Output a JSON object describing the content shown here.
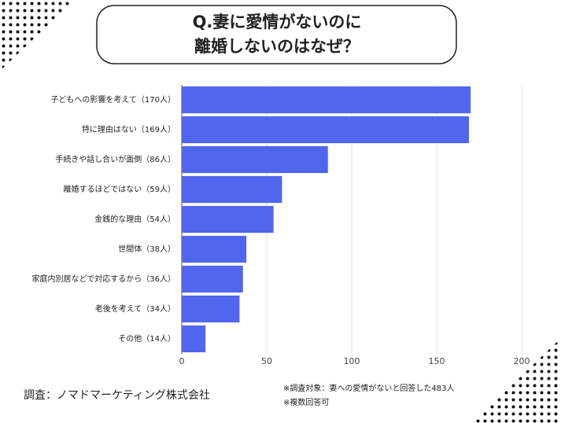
{
  "chart_data": {
    "type": "bar",
    "orientation": "horizontal",
    "title": [
      "Q.妻に愛情がないのに",
      "離婚しないのはなぜ？"
    ],
    "categories": [
      "子どもへの影響を考えて（170人）",
      "特に理由はない（169人）",
      "手続きや話し合いが面倒（86人）",
      "離婚するほどではない（59人）",
      "金銭的な理由（54人）",
      "世間体（38人）",
      "家庭内別居などで対応するから（36人）",
      "老後を考えて（34人）",
      "その他（14人）"
    ],
    "values": [
      170,
      169,
      86,
      59,
      54,
      38,
      36,
      34,
      14
    ],
    "color": "#5166ee",
    "xlim": [
      0,
      200
    ],
    "xticks": [
      0,
      50,
      100,
      150,
      200
    ],
    "grid": true,
    "source": "調査：ノマドマーケティング株式会社",
    "notes": [
      "※調査対象：妻への愛情がないと回答した483人",
      "※複数回答可"
    ]
  }
}
